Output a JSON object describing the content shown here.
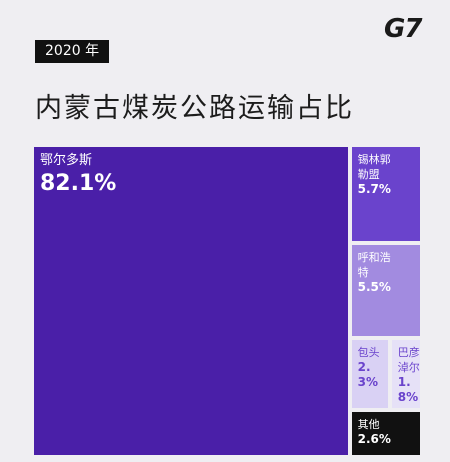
{
  "chart_data": {
    "type": "treemap",
    "logo": "G7",
    "tag": "2020 年",
    "title": "内蒙古煤炭公路运输占比",
    "categories": [
      "鄂尔多斯",
      "锡林郭勒盟",
      "呼和浩特",
      "包头",
      "巴彦淖尔",
      "其他"
    ],
    "values": [
      82.1,
      5.7,
      5.5,
      2.3,
      1.8,
      2.6
    ],
    "value_labels": [
      "82.1%",
      "5.7%",
      "5.5%",
      "2.3%",
      "1.8%",
      "2.6%"
    ],
    "colors": [
      "#4a1fa8",
      "#6a43cc",
      "#a28be0",
      "#d9d1f4",
      "#e6e1f7",
      "#111111"
    ]
  }
}
